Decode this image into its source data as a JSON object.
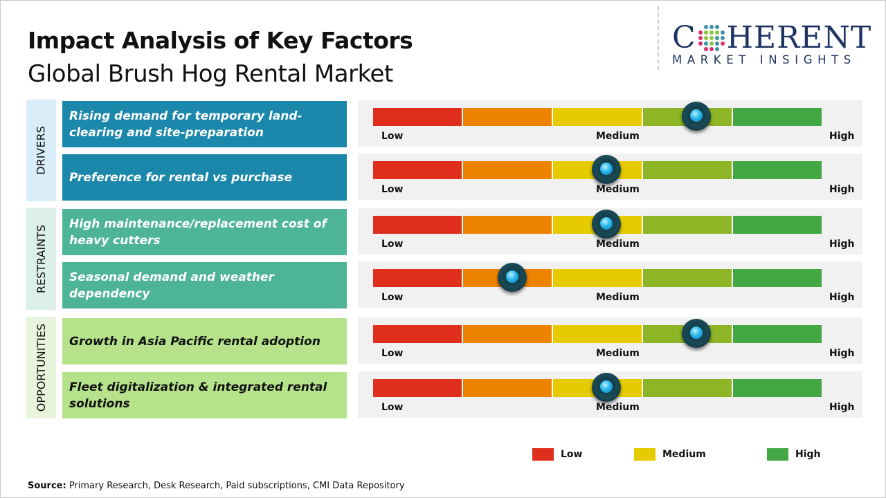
{
  "header": {
    "title": "Impact Analysis of Key Factors",
    "subtitle": "Global Brush Hog Rental Market"
  },
  "logo": {
    "line1": "COHERENT",
    "line2": "MARKET INSIGHTS"
  },
  "scale": {
    "low": "Low",
    "medium": "Medium",
    "high": "High",
    "segment_colors": [
      "#e02e1c",
      "#ee8300",
      "#e5cb00",
      "#8db525",
      "#43a843"
    ]
  },
  "categories": [
    {
      "label": "DRIVERS",
      "label_bg": "#d9eef8",
      "item_bg": "#1b87ab",
      "text_color": "#ffffff",
      "items": [
        {
          "text": "Rising demand for temporary land-clearing and site-preparation",
          "impact": 0.72
        },
        {
          "text": "Preference for rental vs purchase",
          "impact": 0.52
        }
      ]
    },
    {
      "label": "RESTRAINTS",
      "label_bg": "#dcefeb",
      "item_bg": "#4eb497",
      "text_color": "#ffffff",
      "items": [
        {
          "text": "High maintenance/replacement cost of heavy cutters",
          "impact": 0.52
        },
        {
          "text": "Seasonal demand and weather dependency",
          "impact": 0.31
        }
      ]
    },
    {
      "label": "OPPORTUNITIES",
      "label_bg": "#e8f5dc",
      "item_bg": "#b6e28b",
      "text_color": "#111111",
      "items": [
        {
          "text": "Growth in Asia Pacific rental adoption",
          "impact": 0.72
        },
        {
          "text": "Fleet digitalization & integrated rental solutions",
          "impact": 0.52
        }
      ]
    }
  ],
  "legend": [
    {
      "label": "Low",
      "color": "#e02e1c"
    },
    {
      "label": "Medium",
      "color": "#e5cb00"
    },
    {
      "label": "High",
      "color": "#43a843"
    }
  ],
  "source": {
    "label": "Source:",
    "text": " Primary Research, Desk Research, Paid subscriptions, CMI Data Repository"
  }
}
